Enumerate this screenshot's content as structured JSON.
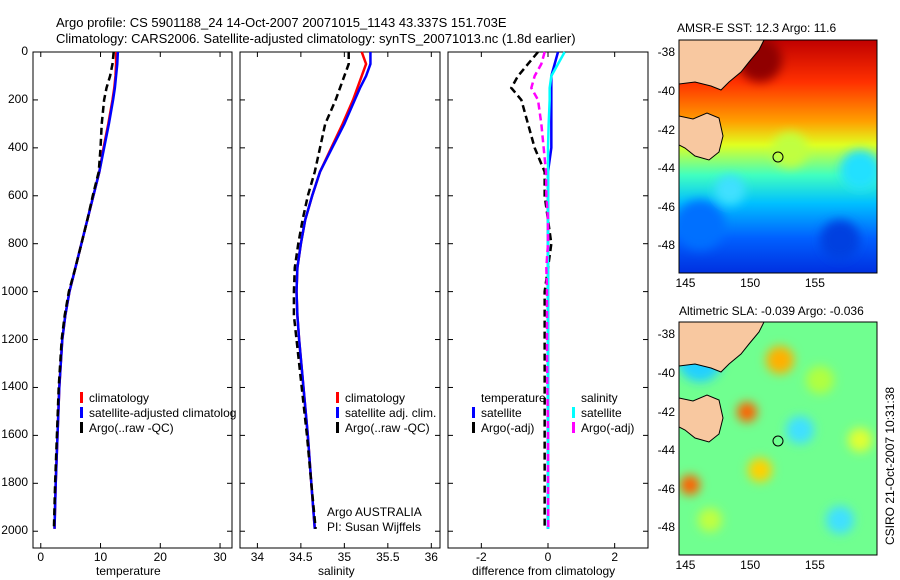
{
  "title": {
    "line1": "Argo profile: CS 5901188_24 14-Oct-2007 20071015_1143 43.337S 151.703E",
    "line2": "Climatology: CARS2006. Satellite-adjusted climatology: synTS_20071013.nc (1.8d earlier)"
  },
  "credit": "CSIRO 21-Oct-2007 10:31:38",
  "argo_note": {
    "line1": "Argo AUSTRALIA",
    "line2": "PI: Susan Wijffels"
  },
  "colors": {
    "climatology": "#ff0000",
    "satellite": "#0000ff",
    "argo": "#000000",
    "sal_satellite": "#00ffff",
    "sal_argo": "#ff00ff"
  },
  "chart_data": [
    {
      "type": "line",
      "name": "temperature",
      "xlabel": "temperature",
      "ylabel": "",
      "xlim": [
        -1.3,
        32
      ],
      "ylim": [
        2070,
        0
      ],
      "xticks": [
        0,
        10,
        20,
        30
      ],
      "yticks": [
        0,
        200,
        400,
        600,
        800,
        1000,
        1200,
        1400,
        1600,
        1800,
        2000
      ],
      "depth": [
        0,
        50,
        100,
        150,
        200,
        300,
        400,
        500,
        600,
        700,
        800,
        900,
        1000,
        1100,
        1200,
        1400,
        1600,
        1800,
        1990
      ],
      "series": [
        {
          "name": "climatology",
          "color": "#ff0000",
          "dash": false,
          "values": [
            12.6,
            12.6,
            12.5,
            12.3,
            12.0,
            11.3,
            10.5,
            9.8,
            8.8,
            7.8,
            6.8,
            5.8,
            4.8,
            4.1,
            3.6,
            3.1,
            2.8,
            2.5,
            2.3
          ]
        },
        {
          "name": "satellite-adjusted climatology",
          "color": "#0000ff",
          "dash": false,
          "values": [
            12.9,
            12.8,
            12.6,
            12.4,
            12.1,
            11.4,
            10.6,
            9.8,
            8.8,
            7.8,
            6.8,
            5.8,
            4.8,
            4.1,
            3.6,
            3.1,
            2.8,
            2.5,
            2.3
          ]
        },
        {
          "name": "Argo(..raw -QC)",
          "color": "#000000",
          "dash": true,
          "values": [
            12.2,
            12.0,
            11.6,
            11.0,
            10.6,
            10.2,
            10.0,
            9.7,
            8.7,
            7.8,
            6.8,
            5.8,
            4.7,
            4.0,
            3.5,
            3.0,
            2.7,
            2.4,
            2.2
          ]
        }
      ],
      "legend": [
        "climatology",
        "satellite-adjusted climatolog",
        "Argo(..raw -QC)"
      ]
    },
    {
      "type": "line",
      "name": "salinity",
      "xlabel": "salinity",
      "xlim": [
        33.8,
        36.1
      ],
      "ylim": [
        2070,
        0
      ],
      "xticks": [
        34,
        34.5,
        35,
        35.5,
        36
      ],
      "depth": [
        0,
        50,
        100,
        150,
        200,
        300,
        400,
        500,
        600,
        700,
        800,
        900,
        1000,
        1100,
        1200,
        1400,
        1600,
        1800,
        1990
      ],
      "series": [
        {
          "name": "climatology",
          "color": "#ff0000",
          "dash": false,
          "values": [
            35.2,
            35.25,
            35.2,
            35.15,
            35.1,
            34.98,
            34.85,
            34.72,
            34.63,
            34.55,
            34.5,
            34.46,
            34.45,
            34.46,
            34.48,
            34.53,
            34.58,
            34.62,
            34.66
          ]
        },
        {
          "name": "satellite adj. clim.",
          "color": "#0000ff",
          "dash": false,
          "values": [
            35.3,
            35.3,
            35.25,
            35.18,
            35.12,
            35.0,
            34.86,
            34.72,
            34.63,
            34.55,
            34.5,
            34.46,
            34.45,
            34.46,
            34.48,
            34.53,
            34.58,
            34.62,
            34.66
          ]
        },
        {
          "name": "Argo(..raw -QC)",
          "color": "#000000",
          "dash": true,
          "values": [
            35.05,
            35.05,
            35.0,
            34.95,
            34.9,
            34.78,
            34.72,
            34.66,
            34.58,
            34.52,
            34.47,
            34.43,
            34.42,
            34.42,
            34.45,
            34.51,
            34.57,
            34.62,
            34.67
          ]
        }
      ],
      "legend": [
        "climatology",
        "satellite adj. clim.",
        "Argo(..raw -QC)"
      ]
    },
    {
      "type": "line",
      "name": "difference",
      "xlabel": "difference from climatology",
      "xlim": [
        -3,
        3
      ],
      "ylim": [
        2070,
        0
      ],
      "xticks": [
        -2,
        0,
        2
      ],
      "depth": [
        0,
        50,
        100,
        150,
        200,
        300,
        400,
        500,
        600,
        700,
        800,
        900,
        1000,
        1100,
        1200,
        1400,
        1600,
        1800,
        1990
      ],
      "series": [
        {
          "name": "temperature satellite",
          "color": "#0000ff",
          "dash": false,
          "values": [
            0.3,
            0.2,
            0.1,
            0.1,
            0.1,
            0.1,
            0.1,
            0,
            0,
            0,
            0,
            0,
            0,
            0,
            0,
            0,
            0,
            0,
            0
          ]
        },
        {
          "name": "temperature Argo(-adj)",
          "color": "#000000",
          "dash": true,
          "values": [
            -0.3,
            -0.6,
            -0.9,
            -1.1,
            -0.8,
            -0.6,
            -0.4,
            -0.1,
            -0.1,
            0,
            0.1,
            0,
            -0.1,
            -0.1,
            -0.1,
            -0.1,
            -0.1,
            -0.1,
            -0.1
          ]
        },
        {
          "name": "salinity satellite",
          "color": "#00ffff",
          "dash": false,
          "values": [
            0.5,
            0.3,
            0.1,
            0.05,
            0.05,
            0.02,
            0,
            0,
            0,
            0,
            0,
            0,
            0,
            0,
            0,
            0,
            0,
            0,
            0
          ]
        },
        {
          "name": "salinity Argo(-adj)",
          "color": "#ff00ff",
          "dash": true,
          "values": [
            -0.1,
            -0.2,
            -0.4,
            -0.5,
            -0.3,
            -0.2,
            -0.13,
            -0.06,
            -0.05,
            0,
            0,
            -0.05,
            -0.03,
            -0.03,
            -0.03,
            -0.02,
            0,
            0,
            0.01
          ]
        }
      ],
      "legend_headers": [
        "temperature",
        "salinity"
      ],
      "legend": [
        "satellite",
        "Argo(-adj)",
        "satellite",
        "Argo(-adj)"
      ]
    },
    {
      "type": "heatmap",
      "name": "sst_map",
      "title": "AMSR-E SST: 12.3 Argo: 11.6",
      "xticks": [
        145,
        150,
        155
      ],
      "yticks": [
        -38,
        -40,
        -42,
        -44,
        -46,
        -48
      ],
      "xlim": [
        144.5,
        159.8
      ],
      "ylim": [
        -49.4,
        -37.3
      ],
      "float": [
        151.703,
        -43.337
      ]
    },
    {
      "type": "heatmap",
      "name": "sla_map",
      "title": "Altimetric SLA: -0.039 Argo: -0.036",
      "xticks": [
        145,
        150,
        155
      ],
      "yticks": [
        -38,
        -40,
        -42,
        -44,
        -46,
        -48
      ],
      "xlim": [
        144.5,
        159.8
      ],
      "ylim": [
        -49.4,
        -37.3
      ],
      "float": [
        151.703,
        -43.337
      ]
    }
  ]
}
